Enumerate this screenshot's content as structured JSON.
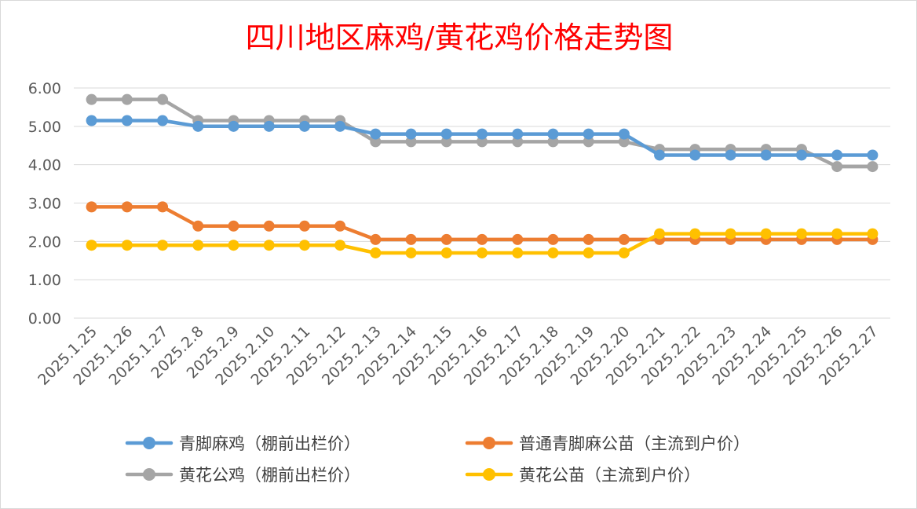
{
  "chart_data": {
    "type": "line",
    "title": "四川地区麻鸡/黄花鸡价格走势图",
    "xlabel": "",
    "ylabel": "",
    "ylim": [
      0,
      6
    ],
    "yticks": [
      "0.00",
      "1.00",
      "2.00",
      "3.00",
      "4.00",
      "5.00",
      "6.00"
    ],
    "grid": true,
    "legend_position": "bottom",
    "categories": [
      "2025.1.25",
      "2025.1.26",
      "2025.1.27",
      "2025.2.8",
      "2025.2.9",
      "2025.2.10",
      "2025.2.11",
      "2025.2.12",
      "2025.2.13",
      "2025.2.14",
      "2025.2.15",
      "2025.2.16",
      "2025.2.17",
      "2025.2.18",
      "2025.2.19",
      "2025.2.20",
      "2025.2.21",
      "2025.2.22",
      "2025.2.23",
      "2025.2.24",
      "2025.2.25",
      "2025.2.26",
      "2025.2.27"
    ],
    "series": [
      {
        "name": "青脚麻鸡（棚前出栏价）",
        "color": "#5b9bd5",
        "values": [
          5.15,
          5.15,
          5.15,
          5.0,
          5.0,
          5.0,
          5.0,
          5.0,
          4.8,
          4.8,
          4.8,
          4.8,
          4.8,
          4.8,
          4.8,
          4.8,
          4.25,
          4.25,
          4.25,
          4.25,
          4.25,
          4.25,
          4.25
        ]
      },
      {
        "name": "普通青脚麻公苗（主流到户价）",
        "color": "#ed7d31",
        "values": [
          2.9,
          2.9,
          2.9,
          2.4,
          2.4,
          2.4,
          2.4,
          2.4,
          2.05,
          2.05,
          2.05,
          2.05,
          2.05,
          2.05,
          2.05,
          2.05,
          2.05,
          2.05,
          2.05,
          2.05,
          2.05,
          2.05,
          2.05
        ]
      },
      {
        "name": "黄花公鸡（棚前出栏价）",
        "color": "#a5a5a5",
        "values": [
          5.7,
          5.7,
          5.7,
          5.15,
          5.15,
          5.15,
          5.15,
          5.15,
          4.6,
          4.6,
          4.6,
          4.6,
          4.6,
          4.6,
          4.6,
          4.6,
          4.4,
          4.4,
          4.4,
          4.4,
          4.4,
          3.95,
          3.95
        ]
      },
      {
        "name": "黄花公苗（主流到户价）",
        "color": "#ffc000",
        "values": [
          1.9,
          1.9,
          1.9,
          1.9,
          1.9,
          1.9,
          1.9,
          1.9,
          1.7,
          1.7,
          1.7,
          1.7,
          1.7,
          1.7,
          1.7,
          1.7,
          2.2,
          2.2,
          2.2,
          2.2,
          2.2,
          2.2,
          2.2
        ]
      }
    ]
  }
}
